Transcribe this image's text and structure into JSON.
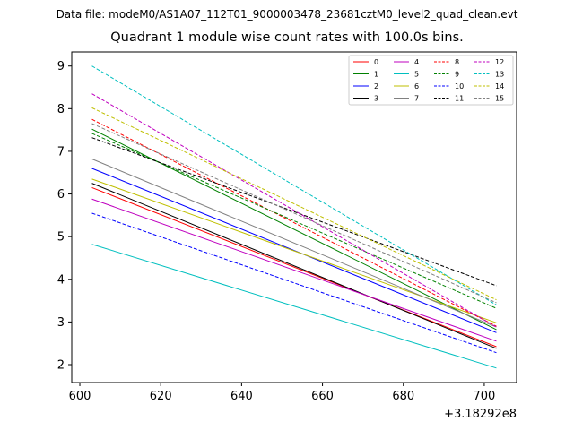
{
  "figure": {
    "suptitle": "Data file: modeM0/AS1A07_112T01_9000003478_23681cztM0_level2_quad_clean.evt"
  },
  "chart_data": {
    "type": "line",
    "title": "Quadrant 1 module wise count rates with 100.0s bins.",
    "xlabel": "",
    "ylabel": "",
    "x_offset_label": "+3.18292e8",
    "x": [
      603,
      703
    ],
    "xlim": [
      598,
      708
    ],
    "ylim": [
      1.58,
      9.33
    ],
    "xticks": [
      600,
      620,
      640,
      660,
      680,
      700
    ],
    "yticks": [
      2,
      3,
      4,
      5,
      6,
      7,
      8,
      9
    ],
    "grid": false,
    "legend": {
      "placement": "top-right",
      "columns": 4
    },
    "series": [
      {
        "name": "0",
        "color": "#ff0000",
        "dash": "solid",
        "values": [
          6.15,
          2.42
        ]
      },
      {
        "name": "1",
        "color": "#008000",
        "dash": "solid",
        "values": [
          7.52,
          2.82
        ]
      },
      {
        "name": "2",
        "color": "#0000ff",
        "dash": "solid",
        "values": [
          6.6,
          2.75
        ]
      },
      {
        "name": "3",
        "color": "#000000",
        "dash": "solid",
        "values": [
          6.25,
          2.38
        ]
      },
      {
        "name": "4",
        "color": "#bf00bf",
        "dash": "solid",
        "values": [
          5.88,
          2.55
        ]
      },
      {
        "name": "5",
        "color": "#00bfbf",
        "dash": "solid",
        "values": [
          4.82,
          1.92
        ]
      },
      {
        "name": "6",
        "color": "#bfbf00",
        "dash": "solid",
        "values": [
          6.35,
          2.98
        ]
      },
      {
        "name": "7",
        "color": "#808080",
        "dash": "solid",
        "values": [
          6.82,
          2.88
        ]
      },
      {
        "name": "8",
        "color": "#ff0000",
        "dash": "dashed",
        "values": [
          7.75,
          2.9
        ]
      },
      {
        "name": "9",
        "color": "#008000",
        "dash": "dashed",
        "values": [
          7.42,
          3.32
        ]
      },
      {
        "name": "10",
        "color": "#0000ff",
        "dash": "dashed",
        "values": [
          5.55,
          2.28
        ]
      },
      {
        "name": "11",
        "color": "#000000",
        "dash": "dashed",
        "values": [
          7.32,
          3.85
        ]
      },
      {
        "name": "12",
        "color": "#bf00bf",
        "dash": "dashed",
        "values": [
          8.35,
          2.88
        ]
      },
      {
        "name": "13",
        "color": "#00bfbf",
        "dash": "dashed",
        "values": [
          9.0,
          3.4
        ]
      },
      {
        "name": "14",
        "color": "#bfbf00",
        "dash": "dashed",
        "values": [
          8.02,
          3.52
        ]
      },
      {
        "name": "15",
        "color": "#808080",
        "dash": "dashed",
        "values": [
          7.65,
          3.45
        ]
      }
    ]
  }
}
